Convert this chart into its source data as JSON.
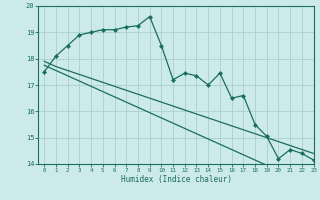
{
  "xlabel": "Humidex (Indice chaleur)",
  "bg_color": "#cceaea",
  "grid_color": "#aacfcf",
  "line_color": "#1a6e5e",
  "x_values": [
    0,
    1,
    2,
    3,
    4,
    5,
    6,
    7,
    8,
    9,
    10,
    11,
    12,
    13,
    14,
    15,
    16,
    17,
    18,
    19,
    20,
    21,
    22,
    23
  ],
  "y_main": [
    17.5,
    18.1,
    18.5,
    18.9,
    19.0,
    19.1,
    19.1,
    19.2,
    19.25,
    19.6,
    18.5,
    17.2,
    17.45,
    17.35,
    17.0,
    17.45,
    16.5,
    16.6,
    15.5,
    15.05,
    14.2,
    14.55,
    14.4,
    14.15
  ],
  "y_reg1": [
    17.9,
    17.7,
    17.55,
    17.4,
    17.25,
    17.1,
    16.95,
    16.8,
    16.65,
    16.5,
    16.35,
    16.2,
    16.05,
    15.9,
    15.75,
    15.6,
    15.45,
    15.3,
    15.15,
    15.0,
    14.85,
    14.7,
    14.55,
    14.4
  ],
  "y_reg2": [
    17.75,
    17.55,
    17.35,
    17.15,
    16.95,
    16.75,
    16.55,
    16.35,
    16.15,
    15.95,
    15.75,
    15.55,
    15.35,
    15.15,
    14.95,
    14.75,
    14.55,
    14.35,
    14.15,
    13.95,
    13.75,
    13.55,
    13.35,
    13.15
  ],
  "ylim": [
    14,
    20
  ],
  "xlim": [
    -0.5,
    23
  ],
  "yticks": [
    14,
    15,
    16,
    17,
    18,
    19,
    20
  ],
  "xticks": [
    0,
    1,
    2,
    3,
    4,
    5,
    6,
    7,
    8,
    9,
    10,
    11,
    12,
    13,
    14,
    15,
    16,
    17,
    18,
    19,
    20,
    21,
    22,
    23
  ]
}
